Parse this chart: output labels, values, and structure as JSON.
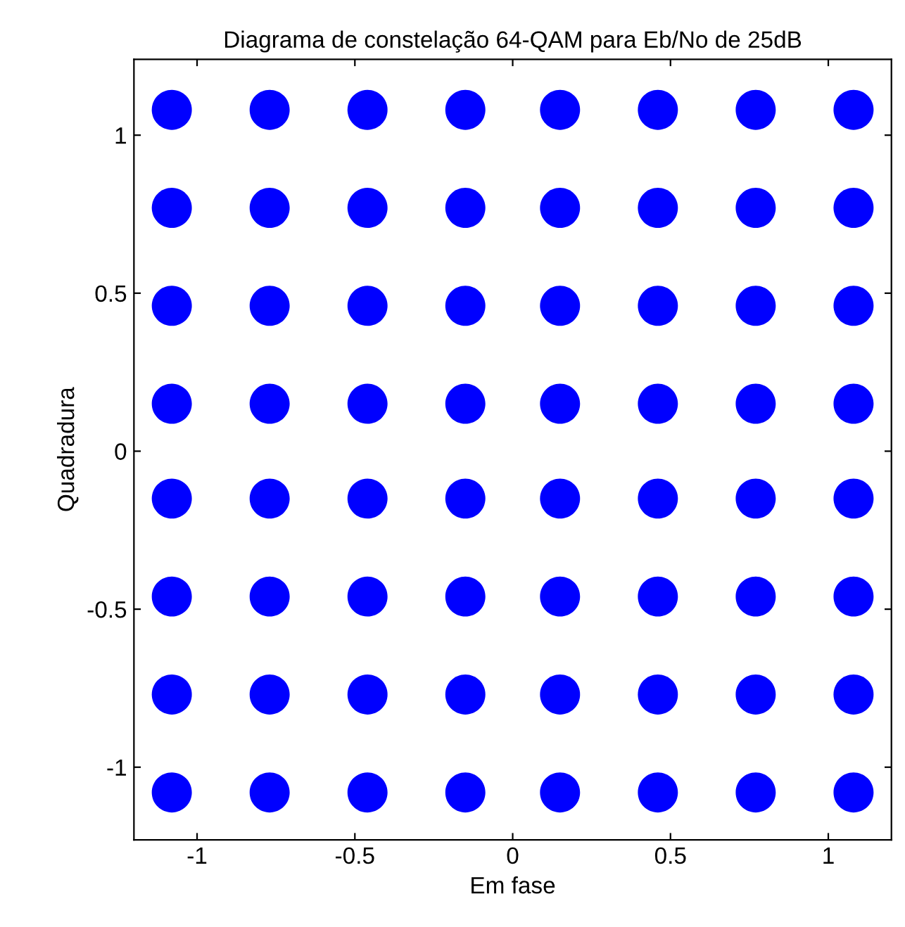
{
  "chart_data": {
    "type": "scatter",
    "title": "Diagrama de constelação 64-QAM para Eb/No de 25dB",
    "xlabel": "Em fase",
    "ylabel": "Quadradura",
    "xlim": [
      -1.2,
      1.2
    ],
    "ylim": [
      -1.23,
      1.24
    ],
    "xticks": [
      -1,
      -0.5,
      0,
      0.5,
      1
    ],
    "yticks": [
      -1,
      -0.5,
      0,
      0.5,
      1
    ],
    "grid": false,
    "marker": "circle",
    "series": [
      {
        "color": "#0000ff",
        "x": [
          -1.08,
          -0.77,
          -0.46,
          -0.15,
          0.15,
          0.46,
          0.77,
          1.08,
          -1.08,
          -0.77,
          -0.46,
          -0.15,
          0.15,
          0.46,
          0.77,
          1.08,
          -1.08,
          -0.77,
          -0.46,
          -0.15,
          0.15,
          0.46,
          0.77,
          1.08,
          -1.08,
          -0.77,
          -0.46,
          -0.15,
          0.15,
          0.46,
          0.77,
          1.08,
          -1.08,
          -0.77,
          -0.46,
          -0.15,
          0.15,
          0.46,
          0.77,
          1.08,
          -1.08,
          -0.77,
          -0.46,
          -0.15,
          0.15,
          0.46,
          0.77,
          1.08,
          -1.08,
          -0.77,
          -0.46,
          -0.15,
          0.15,
          0.46,
          0.77,
          1.08,
          -1.08,
          -0.77,
          -0.46,
          -0.15,
          0.15,
          0.46,
          0.77,
          1.08
        ],
        "values": [
          1.08,
          1.08,
          1.08,
          1.08,
          1.08,
          1.08,
          1.08,
          1.08,
          0.77,
          0.77,
          0.77,
          0.77,
          0.77,
          0.77,
          0.77,
          0.77,
          0.46,
          0.46,
          0.46,
          0.46,
          0.46,
          0.46,
          0.46,
          0.46,
          0.15,
          0.15,
          0.15,
          0.15,
          0.15,
          0.15,
          0.15,
          0.15,
          -0.15,
          -0.15,
          -0.15,
          -0.15,
          -0.15,
          -0.15,
          -0.15,
          -0.15,
          -0.46,
          -0.46,
          -0.46,
          -0.46,
          -0.46,
          -0.46,
          -0.46,
          -0.46,
          -0.77,
          -0.77,
          -0.77,
          -0.77,
          -0.77,
          -0.77,
          -0.77,
          -0.77,
          -1.08,
          -1.08,
          -1.08,
          -1.08,
          -1.08,
          -1.08,
          -1.08,
          -1.08
        ]
      }
    ]
  }
}
